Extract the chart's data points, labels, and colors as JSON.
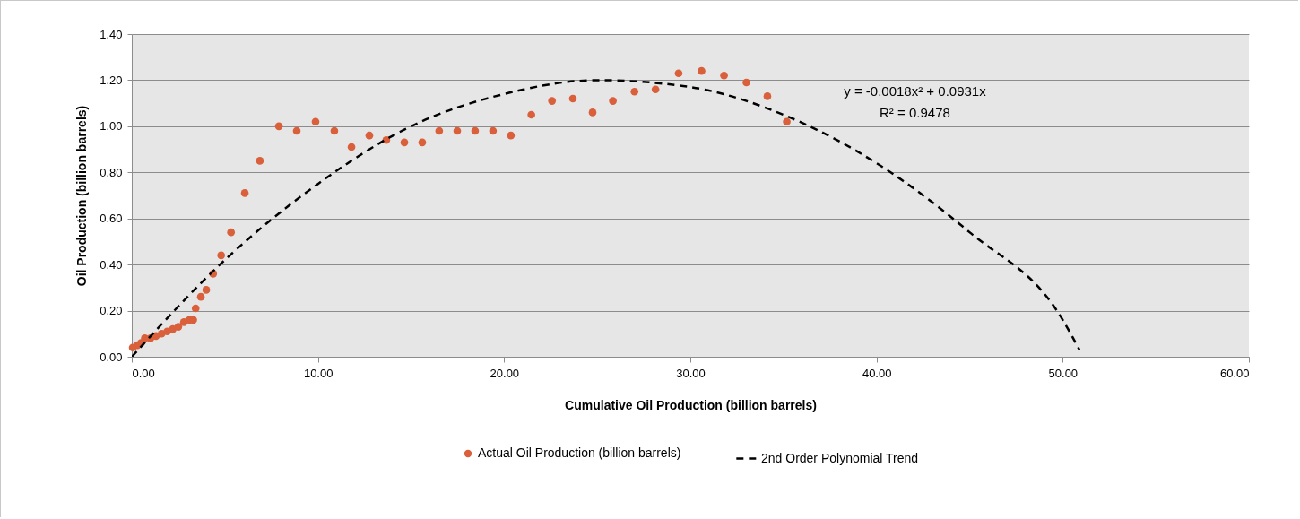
{
  "chart_data": {
    "type": "scatter",
    "xlabel": "Cumulative Oil Production (billion barrels)",
    "ylabel": "Oil Production (billion barrels)",
    "xlim": [
      0,
      60
    ],
    "ylim": [
      0,
      1.4
    ],
    "xticks": [
      {
        "value": 0,
        "label": "0.00"
      },
      {
        "value": 10,
        "label": "10.00"
      },
      {
        "value": 20,
        "label": "20.00"
      },
      {
        "value": 30,
        "label": "30.00"
      },
      {
        "value": 40,
        "label": "40.00"
      },
      {
        "value": 50,
        "label": "50.00"
      },
      {
        "value": 60,
        "label": "60.00"
      }
    ],
    "yticks": [
      {
        "value": 0,
        "label": "0.00"
      },
      {
        "value": 0.2,
        "label": "0.20"
      },
      {
        "value": 0.4,
        "label": "0.40"
      },
      {
        "value": 0.6,
        "label": "0.60"
      },
      {
        "value": 0.8,
        "label": "0.80"
      },
      {
        "value": 1,
        "label": "1.00"
      },
      {
        "value": 1.2,
        "label": "1.20"
      },
      {
        "value": 1.4,
        "label": "1.40"
      }
    ],
    "grid": "y",
    "legend": "bottom",
    "annotations": [
      "y = -0.0018x² + 0.0931x",
      "R² = 0.9478"
    ],
    "series": [
      {
        "name": "Actual Oil Production (billion barrels)",
        "marker": "circle",
        "color": "#d9603b",
        "x": [
          0.05,
          0.3,
          0.5,
          0.7,
          1.0,
          1.3,
          1.6,
          1.9,
          2.2,
          2.5,
          2.8,
          3.1,
          3.3,
          3.43,
          3.71,
          4.0,
          4.37,
          4.8,
          5.33,
          6.07,
          6.88,
          7.9,
          8.86,
          9.87,
          10.88,
          11.8,
          12.76,
          13.67,
          14.64,
          15.6,
          16.51,
          17.48,
          18.44,
          19.4,
          20.36,
          21.46,
          22.57,
          23.69,
          24.75,
          25.84,
          27.0,
          28.13,
          29.37,
          30.6,
          31.81,
          33.01,
          34.14,
          35.18
        ],
        "values": [
          0.04,
          0.05,
          0.06,
          0.08,
          0.08,
          0.09,
          0.1,
          0.11,
          0.12,
          0.13,
          0.15,
          0.16,
          0.16,
          0.21,
          0.26,
          0.29,
          0.36,
          0.44,
          0.54,
          0.71,
          0.85,
          1.0,
          0.98,
          1.02,
          0.98,
          0.91,
          0.96,
          0.94,
          0.93,
          0.93,
          0.98,
          0.98,
          0.98,
          0.98,
          0.96,
          1.05,
          1.11,
          1.12,
          1.06,
          1.11,
          1.15,
          1.16,
          1.23,
          1.24,
          1.22,
          1.19,
          1.13,
          1.02
        ]
      },
      {
        "name": "2nd Order Polynomial Trend",
        "type": "line",
        "marker": "none",
        "color": "#000000",
        "line_style": "dashed",
        "x": [
          0,
          5,
          10,
          15,
          20,
          25,
          30,
          35,
          40,
          45,
          50,
          50.9
        ],
        "values": [
          0,
          0.42,
          0.75,
          1.0,
          1.14,
          1.2,
          1.17,
          1.05,
          0.84,
          0.54,
          0.16,
          0.03
        ]
      }
    ]
  }
}
